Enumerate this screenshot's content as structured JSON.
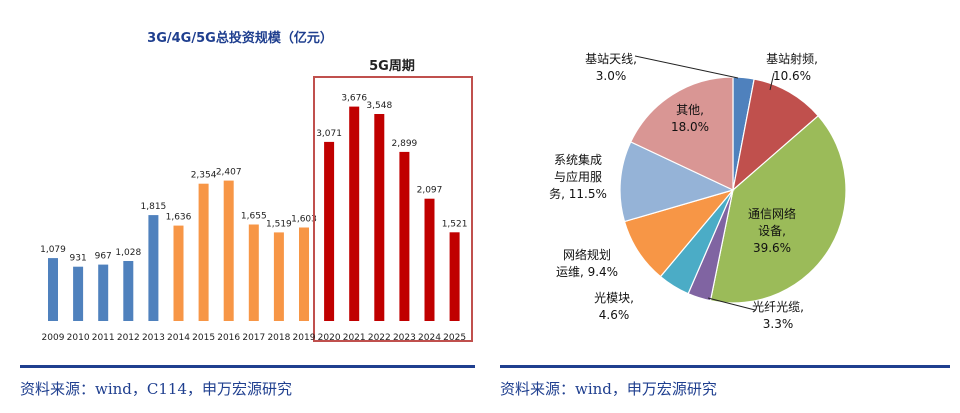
{
  "left_chart": {
    "title": "3G/4G/5G总投资规模（亿元）",
    "highlight_label": "5G周期",
    "source": "资料来源：wind，C114，申万宏源研究",
    "colors": {
      "3G": "#4f81bd",
      "4G": "#f79646",
      "5G": "#c00000",
      "highlight_border": "#c0504d",
      "title": "#1f3f8f"
    }
  },
  "right_chart": {
    "source": "资料来源：wind，申万宏源研究"
  },
  "chart_data": [
    {
      "type": "bar",
      "title": "3G/4G/5G总投资规模（亿元）",
      "categories": [
        "2009",
        "2010",
        "2011",
        "2012",
        "2013",
        "2014",
        "2015",
        "2016",
        "2017",
        "2018",
        "2019",
        "2020",
        "2021",
        "2022",
        "2023",
        "2024",
        "2025"
      ],
      "values": [
        1079,
        931,
        967,
        1028,
        1815,
        1636,
        2354,
        2407,
        1655,
        1519,
        1603,
        3071,
        3676,
        3548,
        2899,
        2097,
        1521
      ],
      "value_labels": [
        "1,079",
        "931",
        "967",
        "1,028",
        "1,815",
        "1,636",
        "2,354",
        "2,407",
        "1,655",
        "1,519",
        "1,603",
        "3,071",
        "3,676",
        "3,548",
        "2,899",
        "2,097",
        "1,521"
      ],
      "generation": [
        "3G",
        "3G",
        "3G",
        "3G",
        "3G",
        "4G",
        "4G",
        "4G",
        "4G",
        "4G",
        "4G",
        "5G",
        "5G",
        "5G",
        "5G",
        "5G",
        "5G"
      ],
      "ylim": [
        0,
        4200
      ],
      "grid": false,
      "xlabel": "",
      "ylabel": ""
    },
    {
      "type": "pie",
      "slices": [
        {
          "label": "基站天线",
          "pct_label": "3.0%",
          "value": 3.0,
          "color": "#4f81bd"
        },
        {
          "label": "基站射频",
          "pct_label": "10.6%",
          "value": 10.6,
          "color": "#c0504d"
        },
        {
          "label": "通信网络设备",
          "pct_label": "39.6%",
          "value": 39.6,
          "color": "#9bbb59"
        },
        {
          "label": "光纤光缆",
          "pct_label": "3.3%",
          "value": 3.3,
          "color": "#8064a2"
        },
        {
          "label": "光模块",
          "pct_label": "4.6%",
          "value": 4.6,
          "color": "#4bacc6"
        },
        {
          "label": "网络规划运维",
          "pct_label": "9.4%",
          "value": 9.4,
          "color": "#f79646"
        },
        {
          "label": "系统集成与应用服务",
          "pct_label": "11.5%",
          "value": 11.5,
          "color": "#95b3d7"
        },
        {
          "label": "其他",
          "pct_label": "18.0%",
          "value": 18.0,
          "color": "#d99694"
        }
      ]
    }
  ]
}
